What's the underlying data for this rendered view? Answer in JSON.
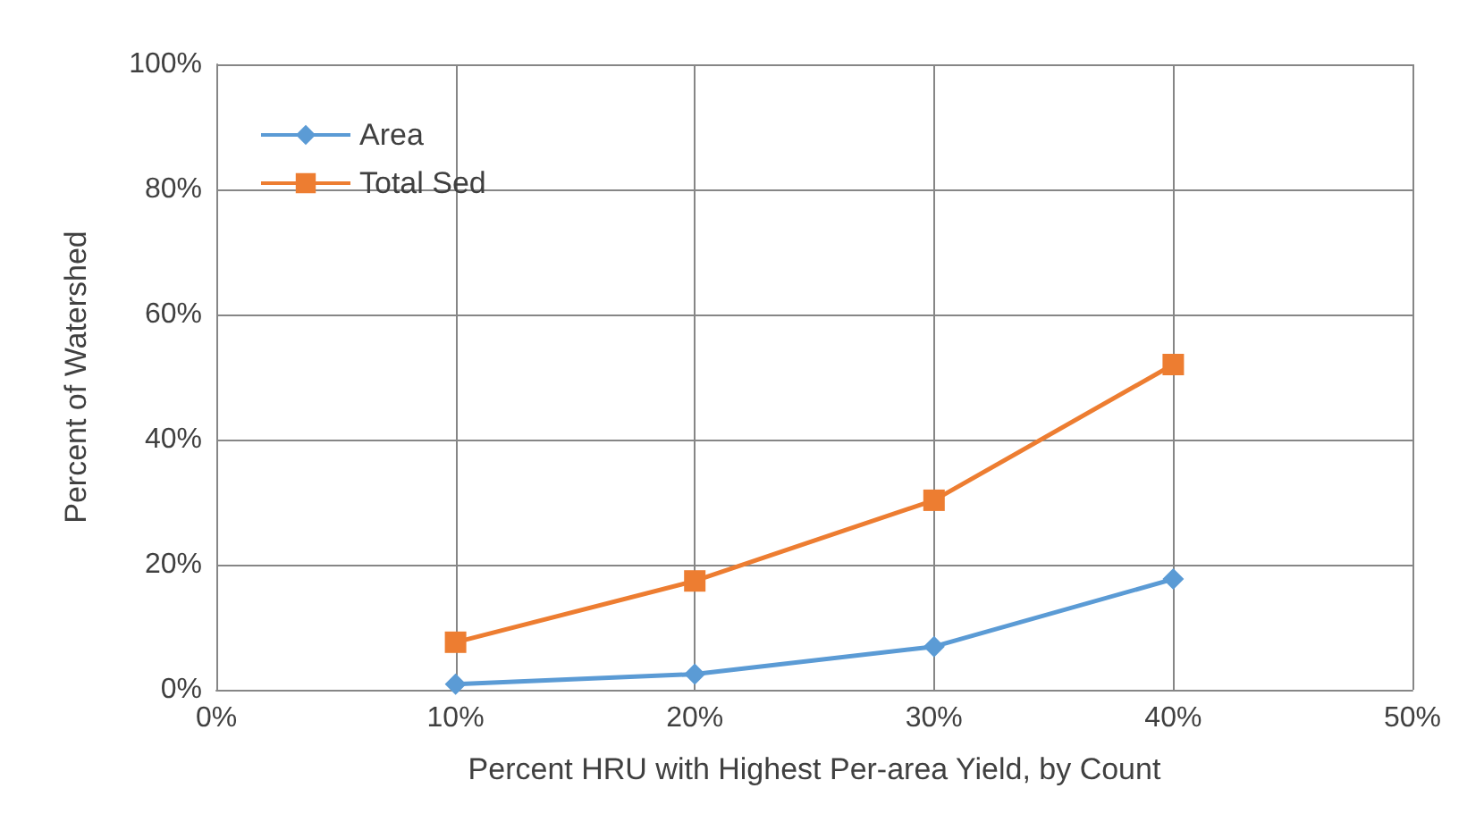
{
  "chart_data": {
    "type": "line",
    "xlabel": "Percent HRU with Highest Per-area Yield, by Count",
    "ylabel": "Percent of Watershed",
    "x": [
      10,
      20,
      30,
      40
    ],
    "series": [
      {
        "name": "Area",
        "color": "#5b9bd5",
        "marker": "diamond",
        "values": [
          0.9,
          2.5,
          6.9,
          17.7
        ]
      },
      {
        "name": "Total Sed",
        "color": "#ed7d31",
        "marker": "square",
        "values": [
          7.6,
          17.4,
          30.3,
          52
        ]
      }
    ],
    "xlim": [
      0,
      50
    ],
    "xticks": [
      {
        "value": 0,
        "label": "0%"
      },
      {
        "value": 10,
        "label": "10%"
      },
      {
        "value": 20,
        "label": "20%"
      },
      {
        "value": 30,
        "label": "30%"
      },
      {
        "value": 40,
        "label": "40%"
      },
      {
        "value": 50,
        "label": "50%"
      }
    ],
    "ylim": [
      0,
      100
    ],
    "yticks": [
      {
        "value": 0,
        "label": "0%"
      },
      {
        "value": 20,
        "label": "20%"
      },
      {
        "value": 40,
        "label": "40%"
      },
      {
        "value": 60,
        "label": "60%"
      },
      {
        "value": 80,
        "label": "80%"
      },
      {
        "value": 100,
        "label": "100%"
      }
    ],
    "grid": true,
    "legend": "top left",
    "line_style": "solid"
  }
}
